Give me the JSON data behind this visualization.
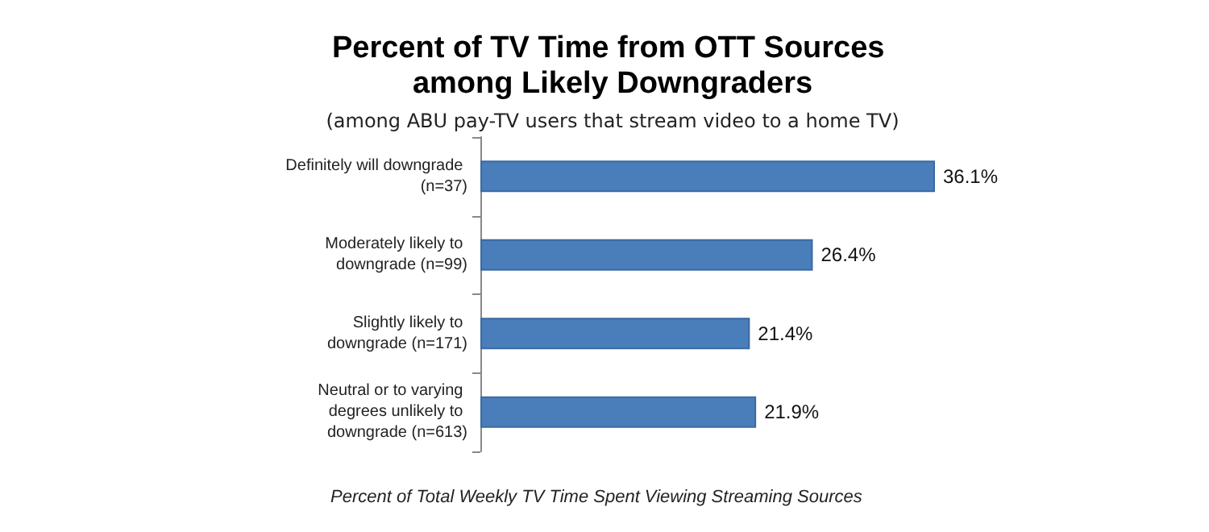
{
  "chart_data": {
    "type": "bar",
    "orientation": "horizontal",
    "title": "Percent of TV Time from OTT Sources among Likely Downgraders",
    "subtitle": "(among ABU pay-TV users that stream video to a home TV)",
    "xlabel": "Percent of Total Weekly TV Time Spent Viewing Streaming Sources",
    "categories": [
      "Definitely will downgrade (n=37)",
      "Moderately likely to downgrade (n=99)",
      "Slightly likely to downgrade (n=171)",
      "Neutral or to varying degrees unlikely to downgrade (n=613)"
    ],
    "values": [
      36.1,
      26.4,
      21.4,
      21.9
    ],
    "value_labels": [
      "36.1%",
      "26.4%",
      "21.4%",
      "21.9%"
    ],
    "color": "#4a7ebb",
    "grid": false
  }
}
